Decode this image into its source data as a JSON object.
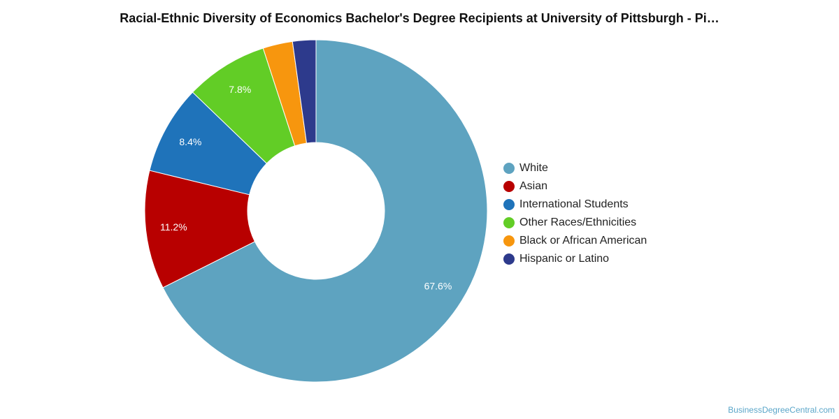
{
  "chart_data": {
    "type": "pie",
    "title": "Racial-Ethnic Diversity of Economics Bachelor's Degree Recipients at University of Pittsburgh - Pi…",
    "donut": true,
    "legend_position": "right",
    "labels": [
      "White",
      "Asian",
      "International Students",
      "Other Races/Ethnicities",
      "Black or African American",
      "Hispanic or Latino"
    ],
    "values": [
      67.6,
      11.2,
      8.4,
      7.8,
      2.8,
      2.2
    ],
    "data_labels": [
      "67.6%",
      "11.2%",
      "8.4%",
      "7.8%",
      "",
      ""
    ],
    "colors": [
      "#5ea3c0",
      "#b80000",
      "#1f73ba",
      "#62cd26",
      "#f7960e",
      "#2d3a8c"
    ]
  },
  "credit": "BusinessDegreeCentral.com"
}
